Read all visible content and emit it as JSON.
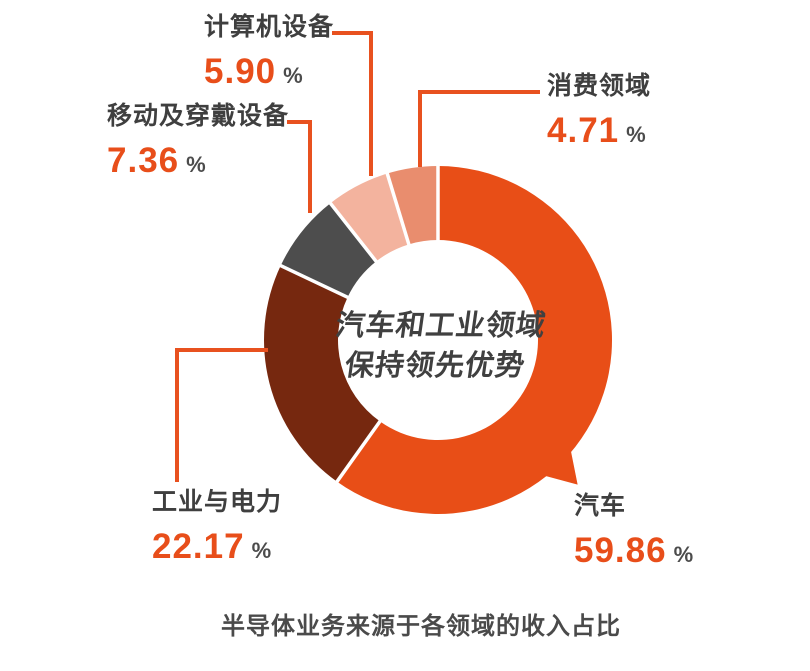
{
  "chart_data": {
    "type": "pie",
    "variant": "donut",
    "title": "半导体业务来源于各领域的收入占比",
    "center_text": [
      "汽车和工业领域",
      "保持领先优势"
    ],
    "unit": "%",
    "legend_position": "callouts-around-chart",
    "segments": [
      {
        "id": "auto",
        "label": "汽车",
        "value": 59.86,
        "display": "59.86",
        "color": "#e84e17"
      },
      {
        "id": "industry",
        "label": "工业与电力",
        "value": 22.17,
        "display": "22.17",
        "color": "#76280f"
      },
      {
        "id": "mobile",
        "label": "移动及穿戴设备",
        "value": 7.36,
        "display": "7.36",
        "color": "#4d4d4d"
      },
      {
        "id": "computer",
        "label": "计算机设备",
        "value": 5.9,
        "display": "5.90",
        "color": "#f3b39e"
      },
      {
        "id": "consumer",
        "label": "消费领域",
        "value": 4.71,
        "display": "4.71",
        "color": "#e98d6e"
      }
    ]
  },
  "colors": {
    "accent": "#e84e1a",
    "leader_line": "#e8511f",
    "separator": "#ffffff",
    "label_text": "#3f3f3f",
    "percent_sign_text": "#4c4c4c",
    "center_text": "#404040",
    "caption_text": "#4a4a4a",
    "background": "#ffffff"
  }
}
